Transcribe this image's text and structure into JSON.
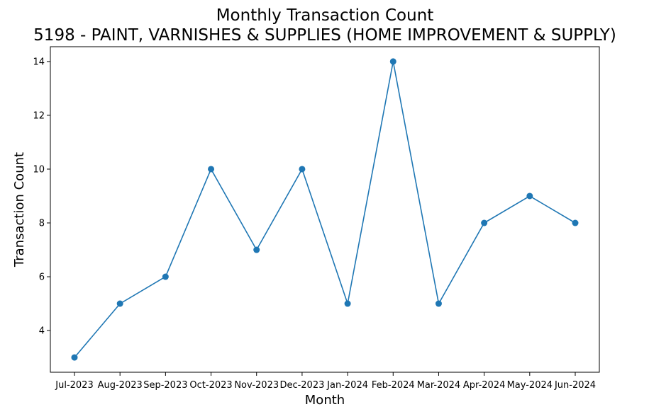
{
  "chart_data": {
    "type": "line",
    "title": "Monthly Transaction Count",
    "subtitle": "5198 - PAINT, VARNISHES & SUPPLIES (HOME IMPROVEMENT & SUPPLY)",
    "xlabel": "Month",
    "ylabel": "Transaction Count",
    "categories": [
      "Jul-2023",
      "Aug-2023",
      "Sep-2023",
      "Oct-2023",
      "Nov-2023",
      "Dec-2023",
      "Jan-2024",
      "Feb-2024",
      "Mar-2024",
      "Apr-2024",
      "May-2024",
      "Jun-2024"
    ],
    "series": [
      {
        "values": [
          3,
          5,
          6,
          10,
          7,
          10,
          5,
          14,
          5,
          8,
          9,
          8
        ]
      }
    ],
    "yticks": [
      4,
      6,
      8,
      10,
      12,
      14
    ],
    "ylim": [
      2.45,
      14.55
    ],
    "grid": false,
    "marker": "circle",
    "color": "#1f77b4"
  }
}
